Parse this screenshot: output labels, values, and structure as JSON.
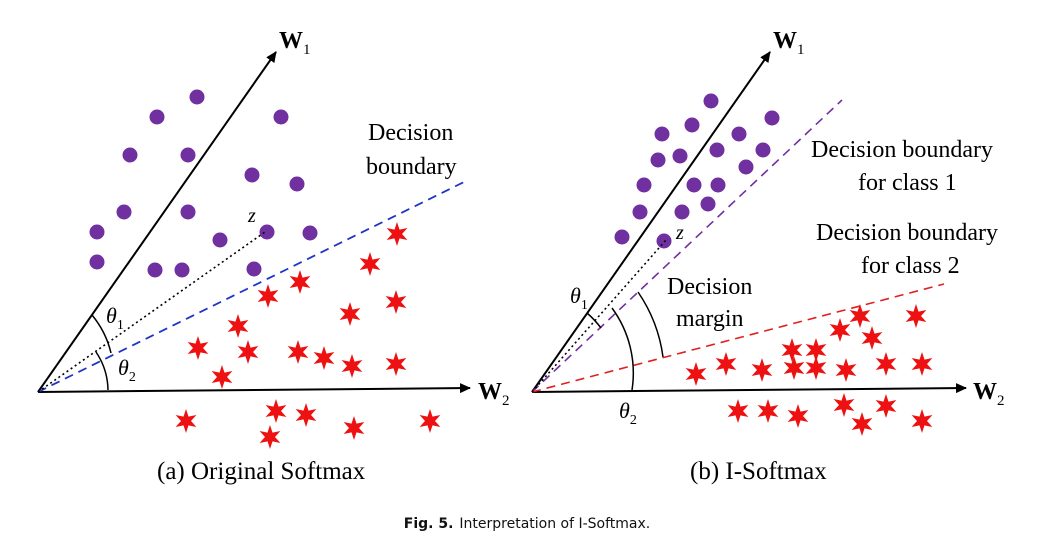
{
  "caption": {
    "label": "Fig. 5.",
    "text": "Interpretation of I-Softmax."
  },
  "panels": [
    {
      "caption": "(a) Original Softmax",
      "labels": {
        "w1": "W",
        "w1_sub": "1",
        "w2": "W",
        "w2_sub": "2",
        "theta1": "θ",
        "theta1_sub": "1",
        "theta2": "θ",
        "theta2_sub": "2",
        "z": "z",
        "boundary_line1": "Decision",
        "boundary_line2": "boundary"
      }
    },
    {
      "caption": "(b) I-Softmax",
      "labels": {
        "w1": "W",
        "w1_sub": "1",
        "w2": "W",
        "w2_sub": "2",
        "theta1": "θ",
        "theta1_sub": "1",
        "theta2": "θ",
        "theta2_sub": "2",
        "z": "z",
        "boundary1_line1": "Decision boundary",
        "boundary1_line2": "for class 1",
        "boundary2_line1": "Decision boundary",
        "boundary2_line2": "for class 2",
        "margin_line1": "Decision",
        "margin_line2": "margin"
      }
    }
  ],
  "colors": {
    "class1_marker": "#7030a0",
    "class2_marker": "#ee1111",
    "boundary_a": "#1f35c6",
    "boundary_b1": "#7030a0",
    "boundary_b2": "#e02020",
    "axes": "#000000"
  },
  "markers": {
    "class1_shape": "circle",
    "class2_shape": "six-pointed-star"
  }
}
